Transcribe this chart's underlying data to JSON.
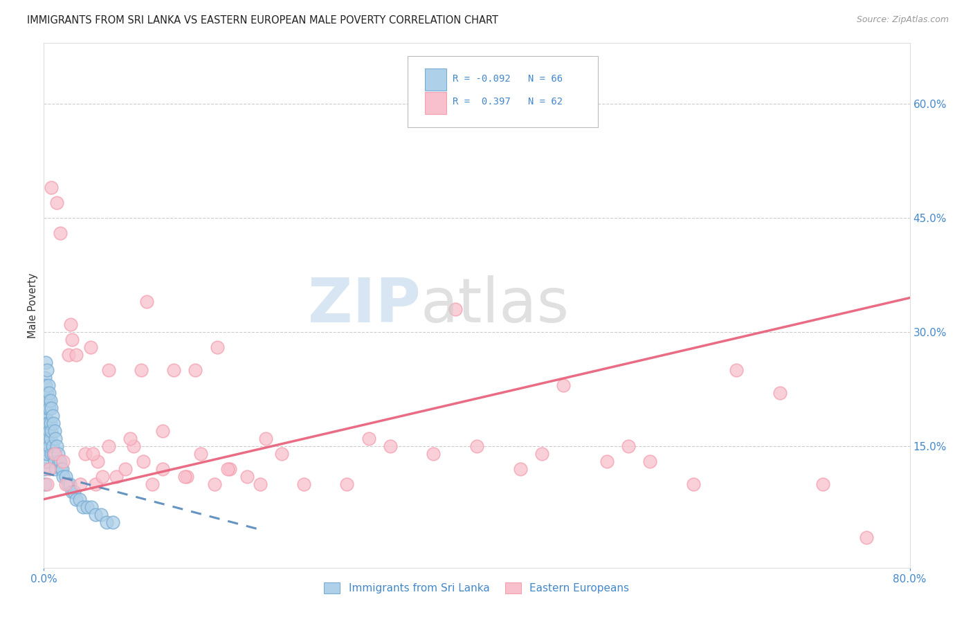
{
  "title": "IMMIGRANTS FROM SRI LANKA VS EASTERN EUROPEAN MALE POVERTY CORRELATION CHART",
  "source": "Source: ZipAtlas.com",
  "ylabel": "Male Poverty",
  "y_tick_labels_right": [
    "15.0%",
    "30.0%",
    "45.0%",
    "60.0%"
  ],
  "y_tick_values_right": [
    0.15,
    0.3,
    0.45,
    0.6
  ],
  "xlim": [
    0.0,
    0.8
  ],
  "ylim": [
    -0.01,
    0.68
  ],
  "legend_label1": "Immigrants from Sri Lanka",
  "legend_label2": "Eastern Europeans",
  "R1": -0.092,
  "N1": 66,
  "R2": 0.397,
  "N2": 62,
  "color_blue": "#7AADD4",
  "color_pink": "#F4A0B0",
  "color_blue_fill": "#AED0E8",
  "color_pink_fill": "#F8C0CC",
  "color_blue_line": "#5588BB",
  "color_pink_line": "#E8607A",
  "background_color": "#FFFFFF",
  "title_fontsize": 10.5,
  "source_fontsize": 9,
  "sri_lanka_x": [
    0.001,
    0.001,
    0.001,
    0.001,
    0.001,
    0.001,
    0.001,
    0.001,
    0.001,
    0.001,
    0.002,
    0.002,
    0.002,
    0.002,
    0.002,
    0.002,
    0.002,
    0.003,
    0.003,
    0.003,
    0.003,
    0.003,
    0.003,
    0.004,
    0.004,
    0.004,
    0.004,
    0.005,
    0.005,
    0.005,
    0.005,
    0.006,
    0.006,
    0.006,
    0.007,
    0.007,
    0.007,
    0.008,
    0.008,
    0.009,
    0.009,
    0.01,
    0.01,
    0.011,
    0.011,
    0.012,
    0.013,
    0.014,
    0.015,
    0.016,
    0.017,
    0.018,
    0.02,
    0.022,
    0.024,
    0.026,
    0.028,
    0.03,
    0.033,
    0.036,
    0.04,
    0.044,
    0.048,
    0.053,
    0.058,
    0.064
  ],
  "sri_lanka_y": [
    0.24,
    0.22,
    0.2,
    0.19,
    0.18,
    0.17,
    0.15,
    0.14,
    0.12,
    0.1,
    0.26,
    0.23,
    0.21,
    0.19,
    0.17,
    0.15,
    0.13,
    0.25,
    0.22,
    0.2,
    0.18,
    0.16,
    0.14,
    0.23,
    0.21,
    0.18,
    0.16,
    0.22,
    0.2,
    0.17,
    0.15,
    0.21,
    0.18,
    0.16,
    0.2,
    0.17,
    0.14,
    0.19,
    0.15,
    0.18,
    0.14,
    0.17,
    0.13,
    0.16,
    0.12,
    0.15,
    0.14,
    0.13,
    0.13,
    0.12,
    0.12,
    0.11,
    0.11,
    0.1,
    0.1,
    0.09,
    0.09,
    0.08,
    0.08,
    0.07,
    0.07,
    0.07,
    0.06,
    0.06,
    0.05,
    0.05
  ],
  "eastern_eu_x": [
    0.003,
    0.005,
    0.007,
    0.01,
    0.012,
    0.015,
    0.018,
    0.02,
    0.023,
    0.026,
    0.03,
    0.034,
    0.038,
    0.043,
    0.048,
    0.054,
    0.06,
    0.067,
    0.075,
    0.083,
    0.092,
    0.1,
    0.11,
    0.12,
    0.132,
    0.145,
    0.158,
    0.172,
    0.188,
    0.205,
    0.05,
    0.08,
    0.11,
    0.14,
    0.17,
    0.2,
    0.24,
    0.28,
    0.32,
    0.36,
    0.4,
    0.44,
    0.48,
    0.52,
    0.56,
    0.6,
    0.64,
    0.68,
    0.72,
    0.76,
    0.025,
    0.06,
    0.095,
    0.13,
    0.045,
    0.09,
    0.16,
    0.22,
    0.3,
    0.38,
    0.46,
    0.54
  ],
  "eastern_eu_y": [
    0.1,
    0.12,
    0.49,
    0.14,
    0.47,
    0.43,
    0.13,
    0.1,
    0.27,
    0.29,
    0.27,
    0.1,
    0.14,
    0.28,
    0.1,
    0.11,
    0.25,
    0.11,
    0.12,
    0.15,
    0.13,
    0.1,
    0.12,
    0.25,
    0.11,
    0.14,
    0.1,
    0.12,
    0.11,
    0.16,
    0.13,
    0.16,
    0.17,
    0.25,
    0.12,
    0.1,
    0.1,
    0.1,
    0.15,
    0.14,
    0.15,
    0.12,
    0.23,
    0.13,
    0.13,
    0.1,
    0.25,
    0.22,
    0.1,
    0.03,
    0.31,
    0.15,
    0.34,
    0.11,
    0.14,
    0.25,
    0.28,
    0.14,
    0.16,
    0.33,
    0.14,
    0.15
  ]
}
